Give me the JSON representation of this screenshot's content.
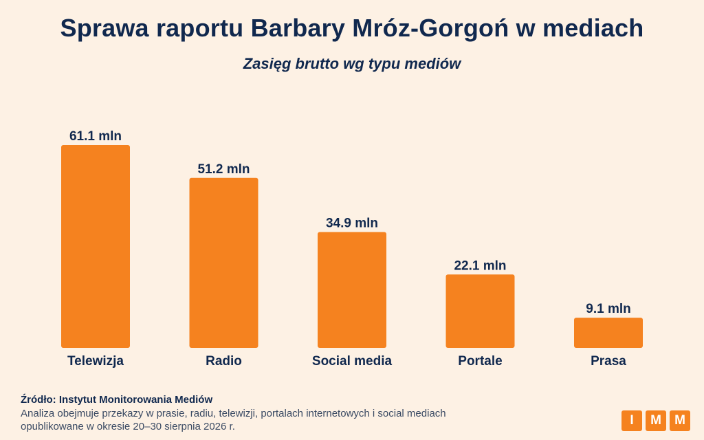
{
  "title": "Sprawa raportu Barbary Mróz-Gorgoń w mediach",
  "subtitle": "Zasięg brutto wg typu mediów",
  "chart_data": {
    "type": "bar",
    "categories": [
      "Telewizja",
      "Radio",
      "Social media",
      "Portale",
      "Prasa"
    ],
    "values": [
      61.1,
      51.2,
      34.9,
      22.1,
      9.1
    ],
    "value_labels": [
      "61.1 mln",
      "51.2 mln",
      "34.9 mln",
      "22.1 mln",
      "9.1 mln"
    ],
    "unit": "mln",
    "ylim": [
      0,
      61.1
    ],
    "grid": false,
    "bar_color": "#f5821f"
  },
  "footer": {
    "source": "Źródło: Instytut Monitorowania Mediów",
    "note": "Analiza obejmuje przekazy w prasie, radiu, telewizji, portalach internetowych i social mediach opublikowane w okresie 20–30 sierpnia 2026 r."
  },
  "logo": {
    "letters": [
      "I",
      "M",
      "M"
    ]
  },
  "colors": {
    "background": "#fdf1e4",
    "text": "#10284e",
    "accent": "#f5821f"
  }
}
